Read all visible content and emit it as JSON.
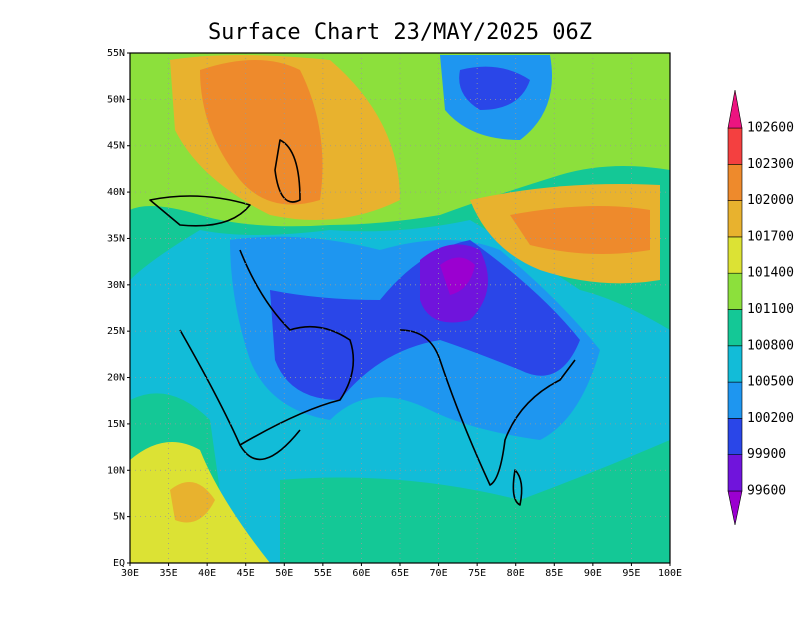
{
  "title": "Surface Chart 23/MAY/2025 06Z",
  "map": {
    "xlim": [
      30,
      100
    ],
    "ylim": [
      0,
      55
    ],
    "xticks": [
      {
        "value": 30,
        "label": "30E"
      },
      {
        "value": 35,
        "label": "35E"
      },
      {
        "value": 40,
        "label": "40E"
      },
      {
        "value": 45,
        "label": "45E"
      },
      {
        "value": 50,
        "label": "50E"
      },
      {
        "value": 55,
        "label": "55E"
      },
      {
        "value": 60,
        "label": "60E"
      },
      {
        "value": 65,
        "label": "65E"
      },
      {
        "value": 70,
        "label": "70E"
      },
      {
        "value": 75,
        "label": "75E"
      },
      {
        "value": 80,
        "label": "80E"
      },
      {
        "value": 85,
        "label": "85E"
      },
      {
        "value": 90,
        "label": "90E"
      },
      {
        "value": 95,
        "label": "95E"
      },
      {
        "value": 100,
        "label": "100E"
      }
    ],
    "yticks": [
      {
        "value": 0,
        "label": "EQ"
      },
      {
        "value": 5,
        "label": "5N"
      },
      {
        "value": 10,
        "label": "10N"
      },
      {
        "value": 15,
        "label": "15N"
      },
      {
        "value": 20,
        "label": "20N"
      },
      {
        "value": 25,
        "label": "25N"
      },
      {
        "value": 30,
        "label": "30N"
      },
      {
        "value": 35,
        "label": "35N"
      },
      {
        "value": 40,
        "label": "40N"
      },
      {
        "value": 45,
        "label": "45N"
      },
      {
        "value": 50,
        "label": "50N"
      },
      {
        "value": 55,
        "label": "55N"
      }
    ],
    "grid": true
  },
  "colorbar": {
    "levels": [
      99600,
      99900,
      100200,
      100500,
      100800,
      101100,
      101400,
      101700,
      102000,
      102300,
      102600
    ],
    "colors": [
      "#9b00d0",
      "#7014dc",
      "#2a46e8",
      "#1e96f0",
      "#12bcd8",
      "#14c896",
      "#8ce03c",
      "#dce234",
      "#e8b22e",
      "#ee8a2c",
      "#f44040",
      "#ec1480"
    ]
  }
}
